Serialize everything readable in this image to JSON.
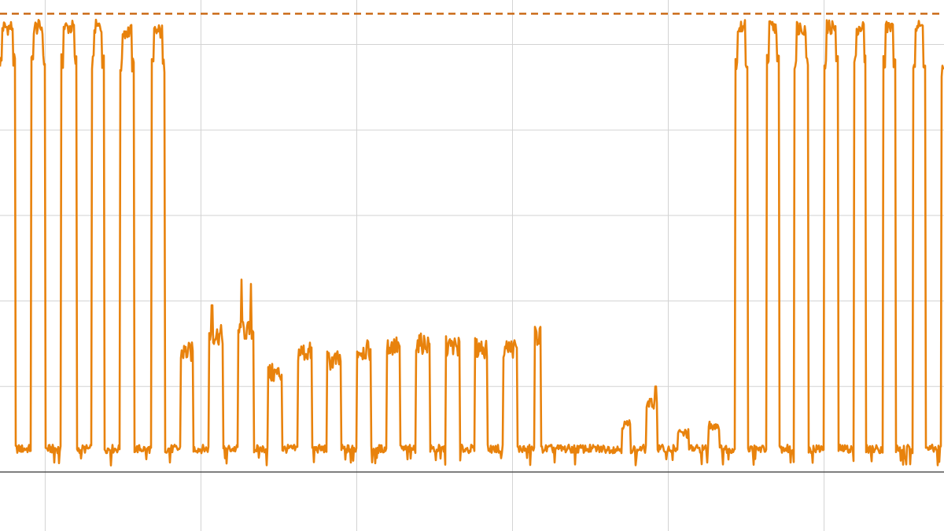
{
  "chart_data": {
    "type": "line",
    "title": "",
    "xlabel": "",
    "ylabel": "",
    "xlim": [
      -0.29,
      5.77
    ],
    "ylim": [
      0,
      5.52
    ],
    "x_gridlines": [
      0,
      1,
      2,
      3,
      4,
      5
    ],
    "y_gridlines": [
      1,
      2,
      3,
      4,
      5
    ],
    "grid": true,
    "legend": "none",
    "colors": {
      "series": "#e8820c",
      "reference": "#c9650f",
      "grid": "#d3d3d3",
      "axis": "#555555"
    },
    "reference_line": {
      "y": 5.36,
      "style": "dashed"
    },
    "baseline_level": 0.27,
    "pulses": [
      {
        "start": -0.29,
        "end": -0.19,
        "level": 5.2
      },
      {
        "start": -0.09,
        "end": 0.0,
        "level": 5.2
      },
      {
        "start": 0.1,
        "end": 0.2,
        "level": 5.2
      },
      {
        "start": 0.3,
        "end": 0.38,
        "level": 5.2
      },
      {
        "start": 0.48,
        "end": 0.57,
        "level": 5.15
      },
      {
        "start": 0.68,
        "end": 0.77,
        "level": 5.15
      },
      {
        "start": 0.87,
        "end": 0.95,
        "level": 1.4
      },
      {
        "start": 1.05,
        "end": 1.14,
        "level": 1.6
      },
      {
        "start": 1.24,
        "end": 1.34,
        "level": 1.65
      },
      {
        "start": 1.43,
        "end": 1.52,
        "level": 1.15
      },
      {
        "start": 1.62,
        "end": 1.71,
        "level": 1.4
      },
      {
        "start": 1.81,
        "end": 1.9,
        "level": 1.3
      },
      {
        "start": 2.0,
        "end": 2.09,
        "level": 1.42
      },
      {
        "start": 2.19,
        "end": 2.28,
        "level": 1.47
      },
      {
        "start": 2.38,
        "end": 2.47,
        "level": 1.5
      },
      {
        "start": 2.57,
        "end": 2.66,
        "level": 1.47
      },
      {
        "start": 2.76,
        "end": 2.84,
        "level": 1.45
      },
      {
        "start": 2.94,
        "end": 3.03,
        "level": 1.45
      },
      {
        "start": 3.14,
        "end": 3.18,
        "level": 1.6
      },
      {
        "start": 3.7,
        "end": 3.76,
        "level": 0.55
      },
      {
        "start": 3.86,
        "end": 3.93,
        "level": 0.8
      },
      {
        "start": 4.06,
        "end": 4.13,
        "level": 0.45
      },
      {
        "start": 4.26,
        "end": 4.33,
        "level": 0.55
      },
      {
        "start": 4.43,
        "end": 4.51,
        "level": 5.2
      },
      {
        "start": 4.63,
        "end": 4.71,
        "level": 5.2
      },
      {
        "start": 4.81,
        "end": 4.9,
        "level": 5.2
      },
      {
        "start": 5.0,
        "end": 5.09,
        "level": 5.2
      },
      {
        "start": 5.19,
        "end": 5.27,
        "level": 5.2
      },
      {
        "start": 5.38,
        "end": 5.46,
        "level": 5.2
      },
      {
        "start": 5.57,
        "end": 5.65,
        "level": 5.2
      },
      {
        "start": 5.75,
        "end": 5.77,
        "level": 5.1
      }
    ],
    "spikes": [
      {
        "x": 1.07,
        "y": 1.95
      },
      {
        "x": 1.26,
        "y": 2.25
      },
      {
        "x": 1.32,
        "y": 2.2
      },
      {
        "x": 3.92,
        "y": 1.0
      }
    ]
  }
}
